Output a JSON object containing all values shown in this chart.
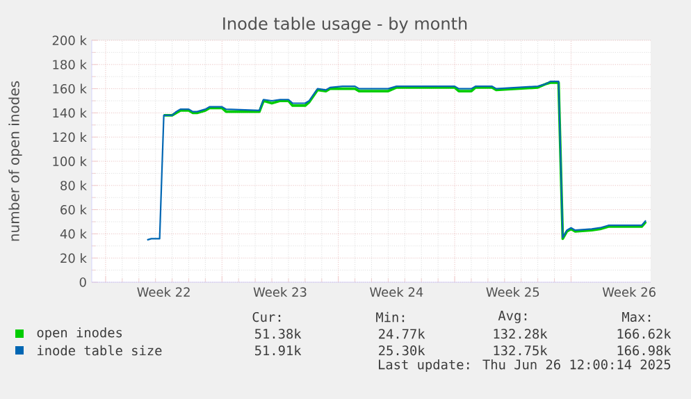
{
  "chart_data": {
    "type": "line",
    "title": "Inode table usage - by month",
    "ylabel": "number of open inodes",
    "xlim": [
      "2025-05-24T04:00",
      "2025-06-26T19:00"
    ],
    "xticks": [
      {
        "value": "2025-05-25",
        "label": null
      },
      {
        "value": "2025-05-28T12:00",
        "label": "Week 22"
      },
      {
        "value": "2025-06-01",
        "label": null
      },
      {
        "value": "2025-06-04T12:00",
        "label": "Week 23"
      },
      {
        "value": "2025-06-08",
        "label": null
      },
      {
        "value": "2025-06-11T12:00",
        "label": "Week 24"
      },
      {
        "value": "2025-06-15",
        "label": null
      },
      {
        "value": "2025-06-18T12:00",
        "label": "Week 25"
      },
      {
        "value": "2025-06-22",
        "label": null
      },
      {
        "value": "2025-06-25T12:00",
        "label": "Week 26"
      }
    ],
    "ylim": [
      0,
      200000
    ],
    "yticks": [
      0,
      {
        "value": 20000,
        "label": "20 k"
      },
      {
        "value": 40000,
        "label": "40 k"
      },
      {
        "value": 60000,
        "label": "60 k"
      },
      {
        "value": 80000,
        "label": "80 k"
      },
      {
        "value": 100000,
        "label": "100 k"
      },
      {
        "value": 120000,
        "label": "120 k"
      },
      {
        "value": 140000,
        "label": "140 k"
      },
      {
        "value": 160000,
        "label": "160 k"
      },
      {
        "value": 180000,
        "label": "180 k"
      },
      {
        "value": 200000,
        "label": "200 k"
      }
    ],
    "grid": true,
    "legend": "bottom",
    "marker": "none",
    "line_style": "solid",
    "series": [
      {
        "name": "open inodes",
        "color": "#00cc00",
        "x": [
          "2025-05-28T12:00",
          "2025-05-29T00:00",
          "2025-05-29T06:00",
          "2025-05-29T12:00",
          "2025-05-30T00:00",
          "2025-05-30T06:00",
          "2025-05-30T12:00",
          "2025-05-31T00:00",
          "2025-05-31T06:00",
          "2025-06-01T00:00",
          "2025-06-01T06:00",
          "2025-06-03T06:00",
          "2025-06-03T12:00",
          "2025-06-04T00:00",
          "2025-06-04T12:00",
          "2025-06-05T00:00",
          "2025-06-05T06:00",
          "2025-06-06T00:00",
          "2025-06-06T06:00",
          "2025-06-06T18:00",
          "2025-06-07T06:00",
          "2025-06-07T12:00",
          "2025-06-08T06:00",
          "2025-06-09T00:00",
          "2025-06-09T06:00",
          "2025-06-11T00:00",
          "2025-06-11T12:00",
          "2025-06-15T00:00",
          "2025-06-15T06:00",
          "2025-06-16T00:00",
          "2025-06-16T06:00",
          "2025-06-17T06:00",
          "2025-06-17T12:00",
          "2025-06-20T00:00",
          "2025-06-20T12:00",
          "2025-06-20T18:00",
          "2025-06-21T06:00",
          "2025-06-21T12:00",
          "2025-06-21T18:00",
          "2025-06-22T00:00",
          "2025-06-22T06:00",
          "2025-06-23T06:00",
          "2025-06-23T18:00",
          "2025-06-24T06:00",
          "2025-06-26T06:00",
          "2025-06-26T12:00"
        ],
        "values": [
          138000,
          138000,
          140000,
          142000,
          142000,
          140000,
          140000,
          142000,
          144000,
          144000,
          141000,
          141000,
          150000,
          148000,
          150000,
          150000,
          146000,
          146000,
          149000,
          159000,
          158000,
          160000,
          160000,
          160000,
          158000,
          158000,
          161000,
          161000,
          158000,
          158000,
          161000,
          161000,
          159000,
          161000,
          164000,
          165000,
          165000,
          36000,
          42000,
          44000,
          42000,
          43000,
          44000,
          46000,
          46000,
          50000
        ]
      },
      {
        "name": "inode table size",
        "color": "#0066b3",
        "x": [
          "2025-05-27T12:00",
          "2025-05-27T18:00",
          "2025-05-28T06:00",
          "2025-05-28T12:00",
          "2025-05-29T00:00",
          "2025-05-29T06:00",
          "2025-05-29T12:00",
          "2025-05-30T00:00",
          "2025-05-30T06:00",
          "2025-05-30T12:00",
          "2025-05-31T00:00",
          "2025-05-31T06:00",
          "2025-06-01T00:00",
          "2025-06-01T06:00",
          "2025-06-03T06:00",
          "2025-06-03T12:00",
          "2025-06-04T00:00",
          "2025-06-04T12:00",
          "2025-06-05T00:00",
          "2025-06-05T06:00",
          "2025-06-06T00:00",
          "2025-06-06T06:00",
          "2025-06-06T18:00",
          "2025-06-07T06:00",
          "2025-06-07T12:00",
          "2025-06-08T06:00",
          "2025-06-09T00:00",
          "2025-06-09T06:00",
          "2025-06-11T00:00",
          "2025-06-11T12:00",
          "2025-06-15T00:00",
          "2025-06-15T06:00",
          "2025-06-16T00:00",
          "2025-06-16T06:00",
          "2025-06-17T06:00",
          "2025-06-17T12:00",
          "2025-06-20T00:00",
          "2025-06-20T12:00",
          "2025-06-20T18:00",
          "2025-06-21T06:00",
          "2025-06-21T12:00",
          "2025-06-21T18:00",
          "2025-06-22T00:00",
          "2025-06-22T06:00",
          "2025-06-23T06:00",
          "2025-06-23T18:00",
          "2025-06-24T06:00",
          "2025-06-26T06:00",
          "2025-06-26T12:00"
        ],
        "values": [
          35000,
          36000,
          36000,
          138000,
          138000,
          141000,
          143000,
          143000,
          141000,
          141000,
          143000,
          145000,
          145000,
          143000,
          142000,
          151000,
          150000,
          151000,
          151000,
          148000,
          148000,
          150000,
          160000,
          159000,
          161000,
          162000,
          162000,
          160000,
          160000,
          162000,
          162000,
          160000,
          160000,
          162000,
          162000,
          160000,
          162000,
          164000,
          166000,
          166000,
          37000,
          43000,
          45000,
          43000,
          44000,
          45000,
          47000,
          47000,
          51000
        ]
      }
    ],
    "annotations": [
      "Cur:",
      "Min:",
      "Avg:",
      "Max:",
      "51.38k",
      "24.77k",
      "132.28k",
      "166.62k",
      "51.91k",
      "25.30k",
      "132.75k",
      "166.98k",
      "Last update: Thu Jun 26 12:00:14 2025"
    ]
  }
}
